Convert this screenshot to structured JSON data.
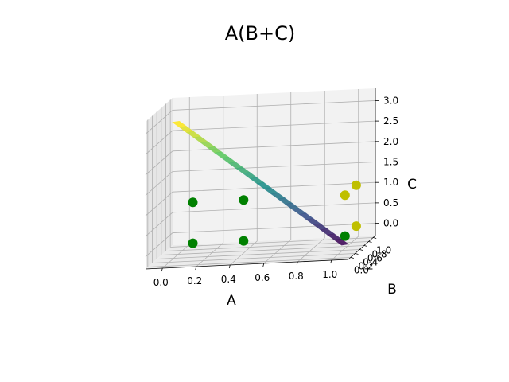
{
  "chart_data": {
    "type": "surface3d",
    "title": "A(B+C)",
    "xlabel": "A",
    "ylabel": "B",
    "zlabel": "C",
    "x_ticks": [
      "0.0",
      "0.2",
      "0.4",
      "0.6",
      "0.8",
      "1.0"
    ],
    "y_ticks": [
      "0.0",
      "0.2",
      "0.4",
      "0.6",
      "0.8",
      "1.0"
    ],
    "z_ticks": [
      "0.0",
      "0.5",
      "1.0",
      "1.5",
      "2.0",
      "2.5",
      "3.0"
    ],
    "xlim": [
      -0.1,
      1.1
    ],
    "ylim": [
      -0.1,
      1.1
    ],
    "zlim": [
      -0.3,
      3.3
    ],
    "grid": true,
    "surface": {
      "function": "A(B+C)",
      "colormap": "viridis",
      "A_range": [
        0,
        1
      ],
      "B_range": [
        0,
        1
      ],
      "C_range": [
        0,
        1
      ]
    },
    "points": [
      {
        "x": 0.1,
        "y": 0.5,
        "z": 0.0,
        "color": "#008000"
      },
      {
        "x": 0.1,
        "y": 0.5,
        "z": 1.0,
        "color": "#008000"
      },
      {
        "x": 0.4,
        "y": 0.5,
        "z": 0.0,
        "color": "#008000"
      },
      {
        "x": 0.4,
        "y": 0.5,
        "z": 1.0,
        "color": "#008000"
      },
      {
        "x": 1.0,
        "y": 0.5,
        "z": 0.0,
        "color": "#008000"
      },
      {
        "x": 1.0,
        "y": 0.5,
        "z": 1.0,
        "color": "#bfbf00"
      },
      {
        "x": 1.0,
        "y": 1.0,
        "z": 0.0,
        "color": "#bfbf00"
      },
      {
        "x": 1.0,
        "y": 1.0,
        "z": 1.0,
        "color": "#bfbf00"
      }
    ]
  }
}
